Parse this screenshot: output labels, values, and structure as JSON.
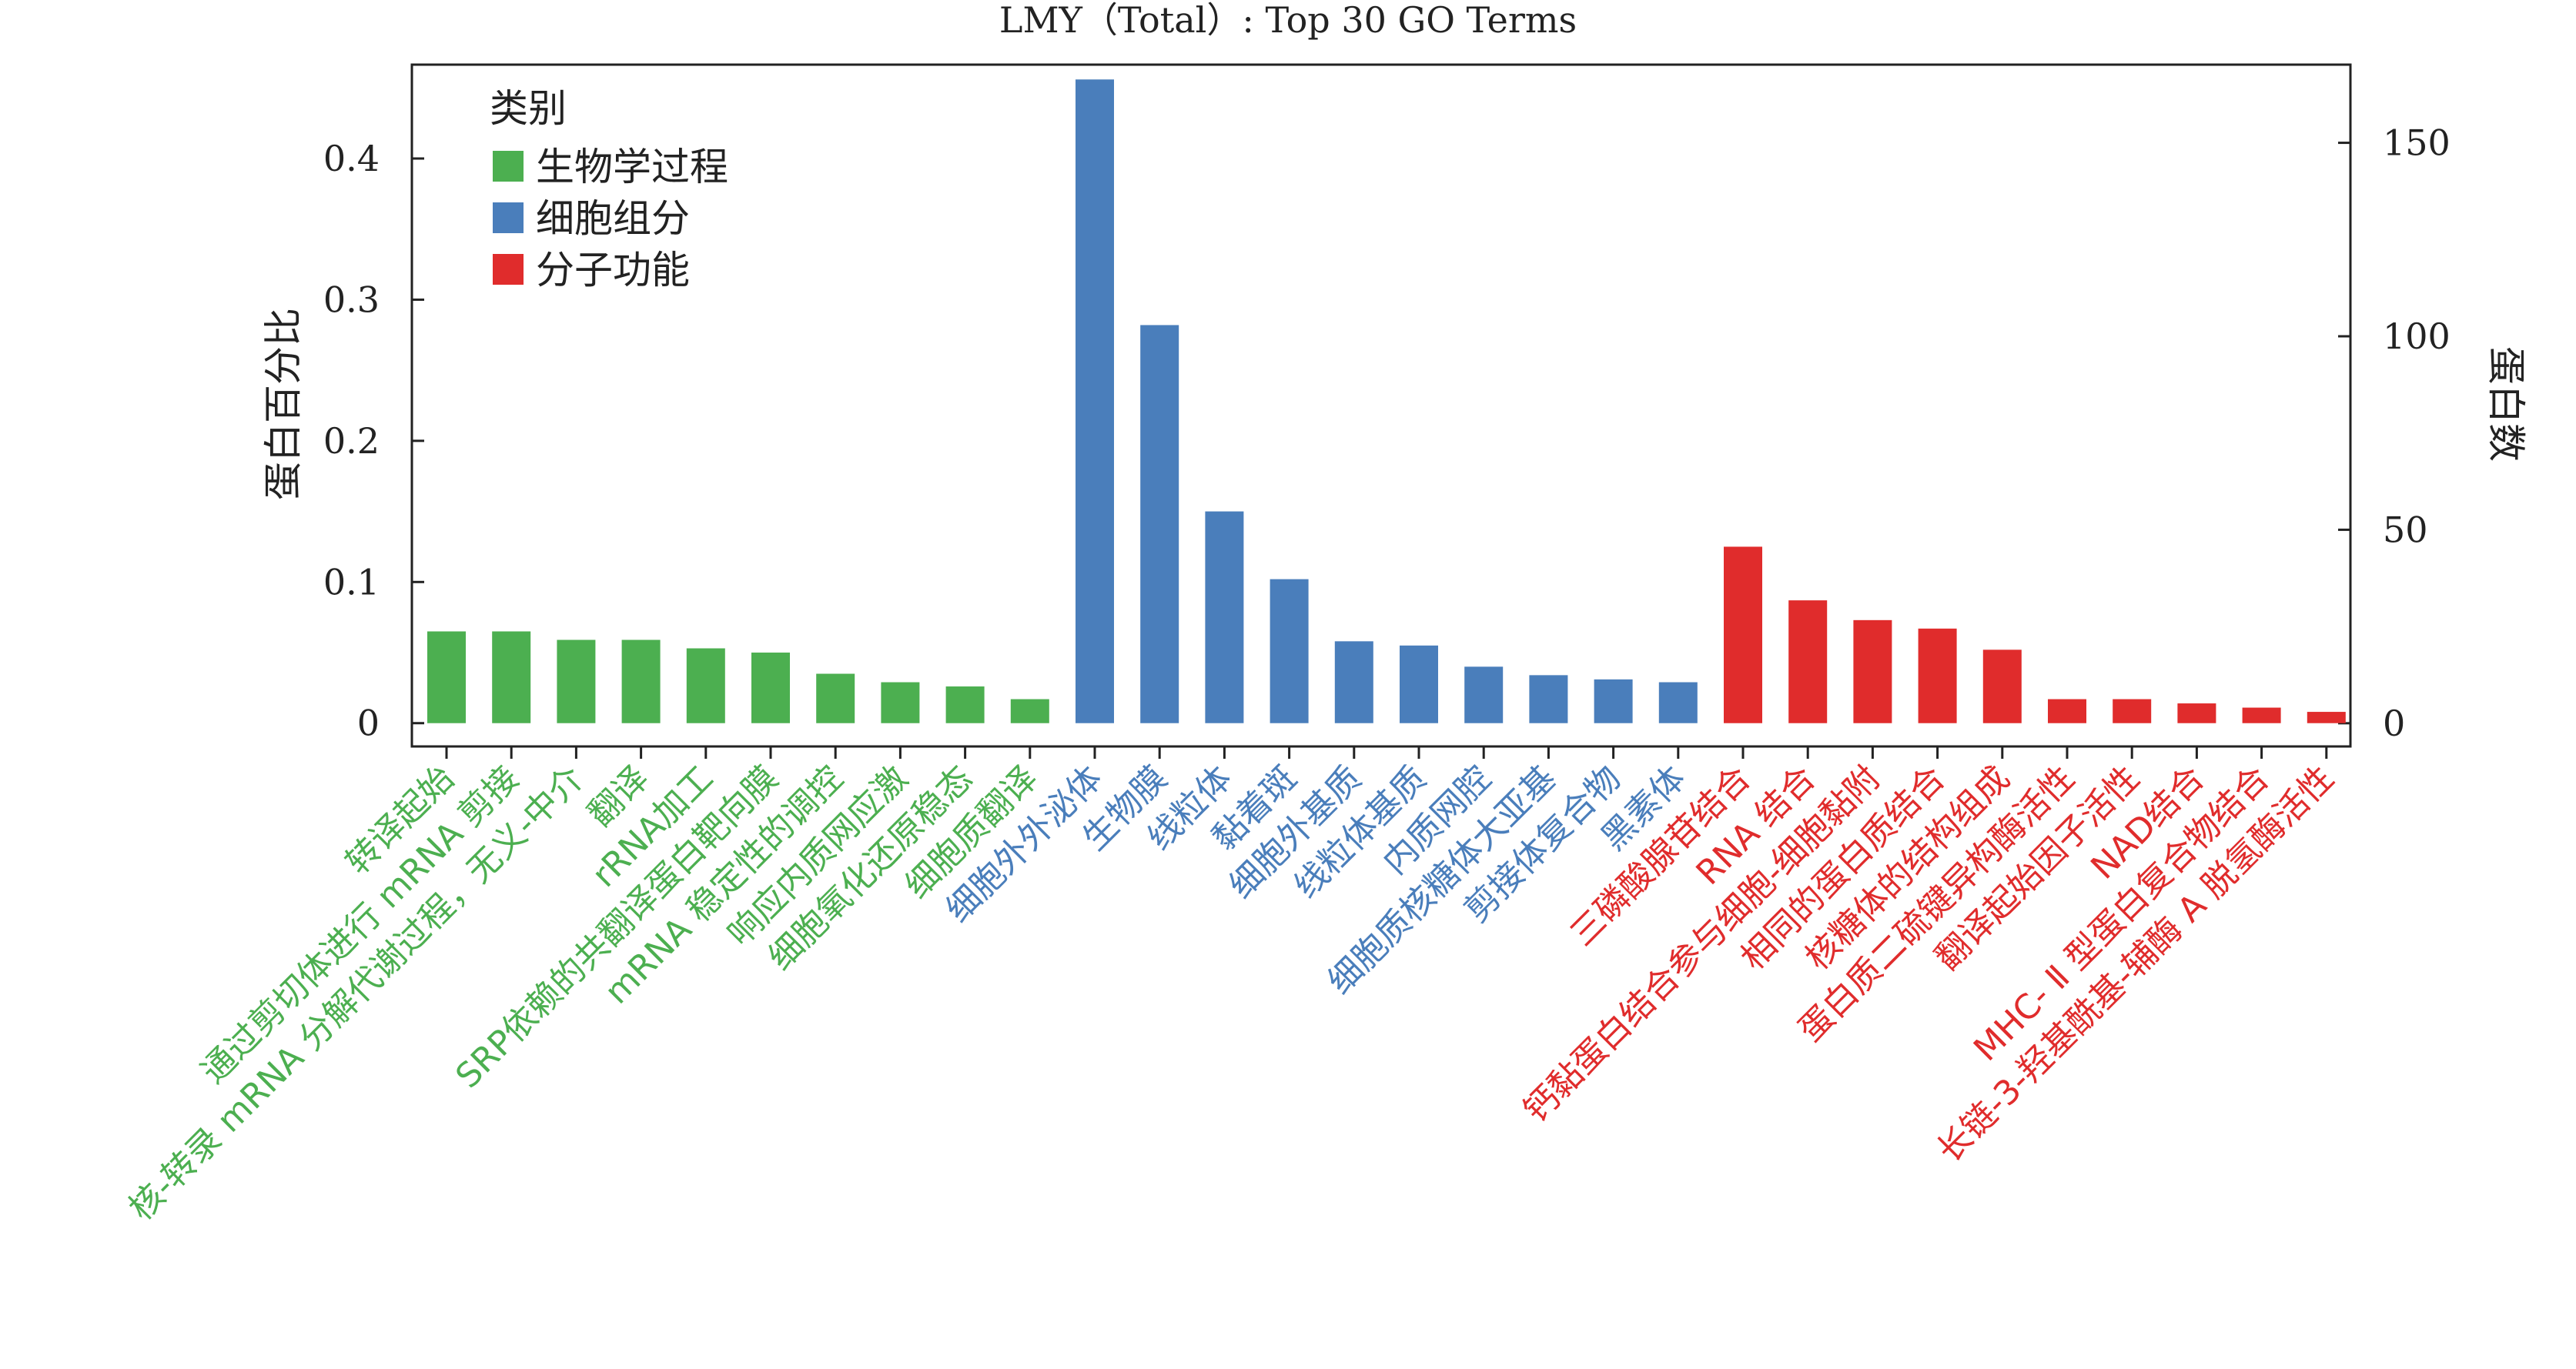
{
  "chart_data": {
    "type": "bar",
    "title": "LMY（Total）: Top 30 GO Terms",
    "ylabel": "蛋白百分比",
    "y2label": "蛋白数",
    "ylim": [
      -0.0165,
      0.4665
    ],
    "y2lim": [
      -6.0,
      170.2
    ],
    "yticks": [
      "0",
      "0.1",
      "0.2",
      "0.3",
      "0.4"
    ],
    "y2ticks": [
      "0",
      "50",
      "100",
      "150"
    ],
    "legend": {
      "title": "类别",
      "position": "top-left",
      "entries": [
        {
          "label": "生物学过程",
          "color": "#4caf50"
        },
        {
          "label": "细胞组分",
          "color": "#4a7ebb"
        },
        {
          "label": "分子功能",
          "color": "#e02c2c"
        }
      ]
    },
    "bars": [
      {
        "label": "转译起始",
        "value": 0.065,
        "group": 0
      },
      {
        "label": "通过剪切体进行 mRNA 剪接",
        "value": 0.065,
        "group": 0
      },
      {
        "label": "核-转录 mRNA 分解代谢过程，无义-中介",
        "value": 0.059,
        "group": 0
      },
      {
        "label": "翻译",
        "value": 0.059,
        "group": 0
      },
      {
        "label": "rRNA加工",
        "value": 0.053,
        "group": 0
      },
      {
        "label": "SRP依赖的共翻译蛋白靶向膜",
        "value": 0.05,
        "group": 0
      },
      {
        "label": "mRNA 稳定性的调控",
        "value": 0.035,
        "group": 0
      },
      {
        "label": "响应内质网应激",
        "value": 0.029,
        "group": 0
      },
      {
        "label": "细胞氧化还原稳态",
        "value": 0.026,
        "group": 0
      },
      {
        "label": "细胞质翻译",
        "value": 0.017,
        "group": 0
      },
      {
        "label": "细胞外外泌体",
        "value": 0.456,
        "group": 1
      },
      {
        "label": "生物膜",
        "value": 0.282,
        "group": 1
      },
      {
        "label": "线粒体",
        "value": 0.15,
        "group": 1
      },
      {
        "label": "黏着斑",
        "value": 0.102,
        "group": 1
      },
      {
        "label": "细胞外基质",
        "value": 0.058,
        "group": 1
      },
      {
        "label": "线粒体基质",
        "value": 0.055,
        "group": 1
      },
      {
        "label": "内质网腔",
        "value": 0.04,
        "group": 1
      },
      {
        "label": "细胞质核糖体大亚基",
        "value": 0.034,
        "group": 1
      },
      {
        "label": "剪接体复合物",
        "value": 0.031,
        "group": 1
      },
      {
        "label": "黑素体",
        "value": 0.029,
        "group": 1
      },
      {
        "label": "三磷酸腺苷结合",
        "value": 0.125,
        "group": 2
      },
      {
        "label": "RNA 结合",
        "value": 0.087,
        "group": 2
      },
      {
        "label": "钙黏蛋白结合参与细胞-细胞黏附",
        "value": 0.073,
        "group": 2
      },
      {
        "label": "相同的蛋白质结合",
        "value": 0.067,
        "group": 2
      },
      {
        "label": "核糖体的结构组成",
        "value": 0.052,
        "group": 2
      },
      {
        "label": "蛋白质二硫键异构酶活性",
        "value": 0.017,
        "group": 2
      },
      {
        "label": "翻译起始因子活性",
        "value": 0.017,
        "group": 2
      },
      {
        "label": "NAD结合",
        "value": 0.014,
        "group": 2
      },
      {
        "label": "MHC- Ⅱ 型蛋白复合物结合",
        "value": 0.011,
        "group": 2
      },
      {
        "label": "长链-3-羟基酰基-辅酶 A 脱氢酶活性",
        "value": 0.008,
        "group": 2
      }
    ]
  }
}
